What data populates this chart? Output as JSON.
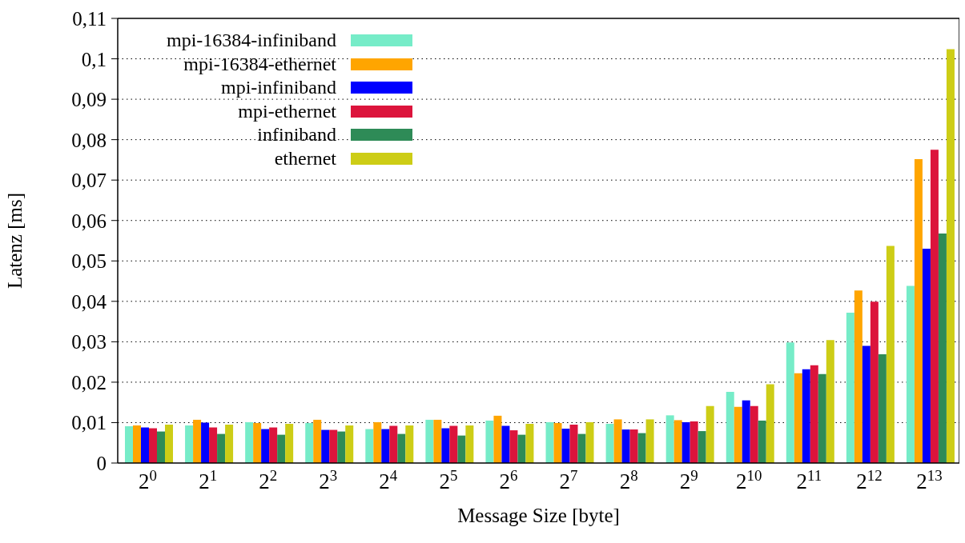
{
  "chart_data": {
    "type": "bar",
    "xlabel": "Message Size [byte]",
    "ylabel": "Latenz [ms]",
    "categories": [
      "2$^{0}$",
      "2$^{1}$",
      "2$^{2}$",
      "2$^{3}$",
      "2$^{4}$",
      "2$^{5}$",
      "2$^{6}$",
      "2$^{7}$",
      "2$^{8}$",
      "2$^{9}$",
      "2$^{10}$",
      "2$^{11}$",
      "2$^{12}$",
      "2$^{13}$"
    ],
    "series": [
      {
        "name": "mpi-16384-infiniband",
        "color": "#76ecc8",
        "values": [
          0.0091,
          0.0093,
          0.0101,
          0.0099,
          0.0084,
          0.0107,
          0.0105,
          0.0101,
          0.0097,
          0.0118,
          0.0176,
          0.0298,
          0.0372,
          0.0438
        ]
      },
      {
        "name": "mpi-16384-ethernet",
        "color": "#ffa500",
        "values": [
          0.0093,
          0.0107,
          0.0099,
          0.0107,
          0.0101,
          0.0107,
          0.0117,
          0.0099,
          0.0108,
          0.0106,
          0.0139,
          0.0222,
          0.0427,
          0.0752
        ]
      },
      {
        "name": "mpi-infiniband",
        "color": "#0000ff",
        "values": [
          0.0088,
          0.01,
          0.0084,
          0.0082,
          0.0084,
          0.0086,
          0.0092,
          0.0085,
          0.0083,
          0.0101,
          0.0155,
          0.0232,
          0.029,
          0.053
        ]
      },
      {
        "name": "mpi-ethernet",
        "color": "#dc143c",
        "values": [
          0.0086,
          0.0088,
          0.0088,
          0.0082,
          0.0092,
          0.0092,
          0.0081,
          0.0095,
          0.0083,
          0.0103,
          0.0141,
          0.0242,
          0.0399,
          0.0775
        ]
      },
      {
        "name": "infiniband",
        "color": "#2e8b57",
        "values": [
          0.0078,
          0.0072,
          0.007,
          0.0078,
          0.0072,
          0.0068,
          0.007,
          0.0072,
          0.0074,
          0.0079,
          0.0105,
          0.022,
          0.0269,
          0.0568
        ]
      },
      {
        "name": "ethernet",
        "color": "#cdcd16",
        "values": [
          0.0095,
          0.0095,
          0.0097,
          0.0093,
          0.0093,
          0.0093,
          0.0097,
          0.0101,
          0.0108,
          0.0141,
          0.0195,
          0.0304,
          0.0537,
          0.1024
        ]
      }
    ],
    "ylim": [
      0,
      0.11
    ],
    "yticks": [
      0,
      {
        "value": 0.01,
        "label": "0,01"
      },
      {
        "value": 0.02,
        "label": "0,02"
      },
      {
        "value": 0.03,
        "label": "0,03"
      },
      {
        "value": 0.04,
        "label": "0,04"
      },
      {
        "value": 0.05,
        "label": "0,05"
      },
      {
        "value": 0.06,
        "label": "0,06"
      },
      {
        "value": 0.07,
        "label": "0,07"
      },
      {
        "value": 0.08,
        "label": "0,08"
      },
      {
        "value": 0.09,
        "label": "0,09"
      },
      {
        "value": 0.1,
        "label": "0,1"
      },
      {
        "value": 0.11,
        "label": "0,11"
      }
    ],
    "grid": "y",
    "legend": "top left"
  }
}
